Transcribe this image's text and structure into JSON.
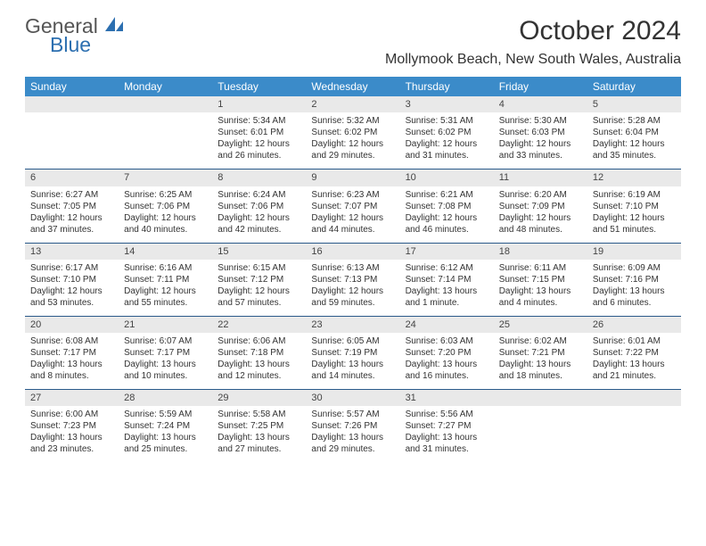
{
  "logo": {
    "text1": "General",
    "text2": "Blue"
  },
  "title": "October 2024",
  "location": "Mollymook Beach, New South Wales, Australia",
  "colors": {
    "header_bg": "#3b8bc9",
    "header_text": "#ffffff",
    "daynum_bg": "#e9e9e9",
    "week_border": "#2a5a8a",
    "logo_blue": "#2c6fb0"
  },
  "daysOfWeek": [
    "Sunday",
    "Monday",
    "Tuesday",
    "Wednesday",
    "Thursday",
    "Friday",
    "Saturday"
  ],
  "weeks": [
    [
      null,
      null,
      {
        "n": "1",
        "sunrise": "5:34 AM",
        "sunset": "6:01 PM",
        "daylight": "12 hours and 26 minutes."
      },
      {
        "n": "2",
        "sunrise": "5:32 AM",
        "sunset": "6:02 PM",
        "daylight": "12 hours and 29 minutes."
      },
      {
        "n": "3",
        "sunrise": "5:31 AM",
        "sunset": "6:02 PM",
        "daylight": "12 hours and 31 minutes."
      },
      {
        "n": "4",
        "sunrise": "5:30 AM",
        "sunset": "6:03 PM",
        "daylight": "12 hours and 33 minutes."
      },
      {
        "n": "5",
        "sunrise": "5:28 AM",
        "sunset": "6:04 PM",
        "daylight": "12 hours and 35 minutes."
      }
    ],
    [
      {
        "n": "6",
        "sunrise": "6:27 AM",
        "sunset": "7:05 PM",
        "daylight": "12 hours and 37 minutes."
      },
      {
        "n": "7",
        "sunrise": "6:25 AM",
        "sunset": "7:06 PM",
        "daylight": "12 hours and 40 minutes."
      },
      {
        "n": "8",
        "sunrise": "6:24 AM",
        "sunset": "7:06 PM",
        "daylight": "12 hours and 42 minutes."
      },
      {
        "n": "9",
        "sunrise": "6:23 AM",
        "sunset": "7:07 PM",
        "daylight": "12 hours and 44 minutes."
      },
      {
        "n": "10",
        "sunrise": "6:21 AM",
        "sunset": "7:08 PM",
        "daylight": "12 hours and 46 minutes."
      },
      {
        "n": "11",
        "sunrise": "6:20 AM",
        "sunset": "7:09 PM",
        "daylight": "12 hours and 48 minutes."
      },
      {
        "n": "12",
        "sunrise": "6:19 AM",
        "sunset": "7:10 PM",
        "daylight": "12 hours and 51 minutes."
      }
    ],
    [
      {
        "n": "13",
        "sunrise": "6:17 AM",
        "sunset": "7:10 PM",
        "daylight": "12 hours and 53 minutes."
      },
      {
        "n": "14",
        "sunrise": "6:16 AM",
        "sunset": "7:11 PM",
        "daylight": "12 hours and 55 minutes."
      },
      {
        "n": "15",
        "sunrise": "6:15 AM",
        "sunset": "7:12 PM",
        "daylight": "12 hours and 57 minutes."
      },
      {
        "n": "16",
        "sunrise": "6:13 AM",
        "sunset": "7:13 PM",
        "daylight": "12 hours and 59 minutes."
      },
      {
        "n": "17",
        "sunrise": "6:12 AM",
        "sunset": "7:14 PM",
        "daylight": "13 hours and 1 minute."
      },
      {
        "n": "18",
        "sunrise": "6:11 AM",
        "sunset": "7:15 PM",
        "daylight": "13 hours and 4 minutes."
      },
      {
        "n": "19",
        "sunrise": "6:09 AM",
        "sunset": "7:16 PM",
        "daylight": "13 hours and 6 minutes."
      }
    ],
    [
      {
        "n": "20",
        "sunrise": "6:08 AM",
        "sunset": "7:17 PM",
        "daylight": "13 hours and 8 minutes."
      },
      {
        "n": "21",
        "sunrise": "6:07 AM",
        "sunset": "7:17 PM",
        "daylight": "13 hours and 10 minutes."
      },
      {
        "n": "22",
        "sunrise": "6:06 AM",
        "sunset": "7:18 PM",
        "daylight": "13 hours and 12 minutes."
      },
      {
        "n": "23",
        "sunrise": "6:05 AM",
        "sunset": "7:19 PM",
        "daylight": "13 hours and 14 minutes."
      },
      {
        "n": "24",
        "sunrise": "6:03 AM",
        "sunset": "7:20 PM",
        "daylight": "13 hours and 16 minutes."
      },
      {
        "n": "25",
        "sunrise": "6:02 AM",
        "sunset": "7:21 PM",
        "daylight": "13 hours and 18 minutes."
      },
      {
        "n": "26",
        "sunrise": "6:01 AM",
        "sunset": "7:22 PM",
        "daylight": "13 hours and 21 minutes."
      }
    ],
    [
      {
        "n": "27",
        "sunrise": "6:00 AM",
        "sunset": "7:23 PM",
        "daylight": "13 hours and 23 minutes."
      },
      {
        "n": "28",
        "sunrise": "5:59 AM",
        "sunset": "7:24 PM",
        "daylight": "13 hours and 25 minutes."
      },
      {
        "n": "29",
        "sunrise": "5:58 AM",
        "sunset": "7:25 PM",
        "daylight": "13 hours and 27 minutes."
      },
      {
        "n": "30",
        "sunrise": "5:57 AM",
        "sunset": "7:26 PM",
        "daylight": "13 hours and 29 minutes."
      },
      {
        "n": "31",
        "sunrise": "5:56 AM",
        "sunset": "7:27 PM",
        "daylight": "13 hours and 31 minutes."
      },
      null,
      null
    ]
  ],
  "labels": {
    "sunrise": "Sunrise:",
    "sunset": "Sunset:",
    "daylight": "Daylight:"
  }
}
